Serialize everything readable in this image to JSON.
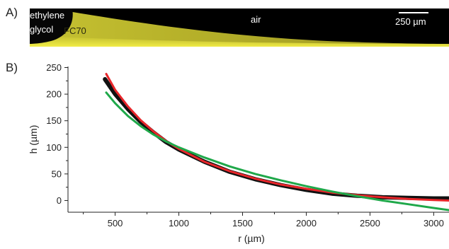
{
  "panel_a": {
    "label": "A)",
    "labels": {
      "ethylene": "ethylene",
      "glycol": "glycol",
      "fc70": "FC70",
      "air": "air",
      "scale": "250 µm"
    },
    "colors": {
      "background": "#000000",
      "fc70_fluid": "#d7d230",
      "glycol_drop": "#050505"
    }
  },
  "panel_b": {
    "label": "B)"
  },
  "chart_data": {
    "type": "line",
    "title": "",
    "xlabel": "r (µm)",
    "ylabel": "h (µm)",
    "xlim": [
      130,
      3120
    ],
    "ylim": [
      -22,
      252
    ],
    "xticks": [
      500,
      1000,
      1500,
      2000,
      2500,
      3000
    ],
    "yticks": [
      0,
      50,
      100,
      150,
      200,
      250
    ],
    "grid": false,
    "legend": "none",
    "series": [
      {
        "color": "#111111",
        "x": [
          420,
          500,
          600,
          700,
          800,
          900,
          1000,
          1200,
          1400,
          1600,
          1800,
          2000,
          2200,
          2400,
          2600,
          2800,
          3000,
          3120
        ],
        "y": [
          228,
          200,
          172,
          148,
          128,
          110,
          96,
          73,
          54,
          40,
          29,
          20,
          13,
          9,
          6,
          5,
          4,
          4
        ]
      },
      {
        "color": "#e8262a",
        "x": [
          430,
          500,
          600,
          700,
          800,
          900,
          1000,
          1200,
          1400,
          1600,
          1800,
          2000,
          2200,
          2400,
          2600,
          2800,
          3000,
          3120
        ],
        "y": [
          238,
          208,
          177,
          151,
          130,
          112,
          97,
          73,
          55,
          41,
          30,
          22,
          15,
          10,
          6,
          3,
          1,
          0
        ]
      },
      {
        "color": "#1fa84a",
        "x": [
          430,
          500,
          600,
          700,
          800,
          900,
          1000,
          1200,
          1400,
          1600,
          1800,
          2000,
          2200,
          2400,
          2600,
          2800,
          3000,
          3120
        ],
        "y": [
          203,
          183,
          159,
          140,
          124,
          111,
          100,
          81,
          64,
          50,
          38,
          27,
          17,
          8,
          0,
          -7,
          -14,
          -18
        ]
      }
    ]
  }
}
